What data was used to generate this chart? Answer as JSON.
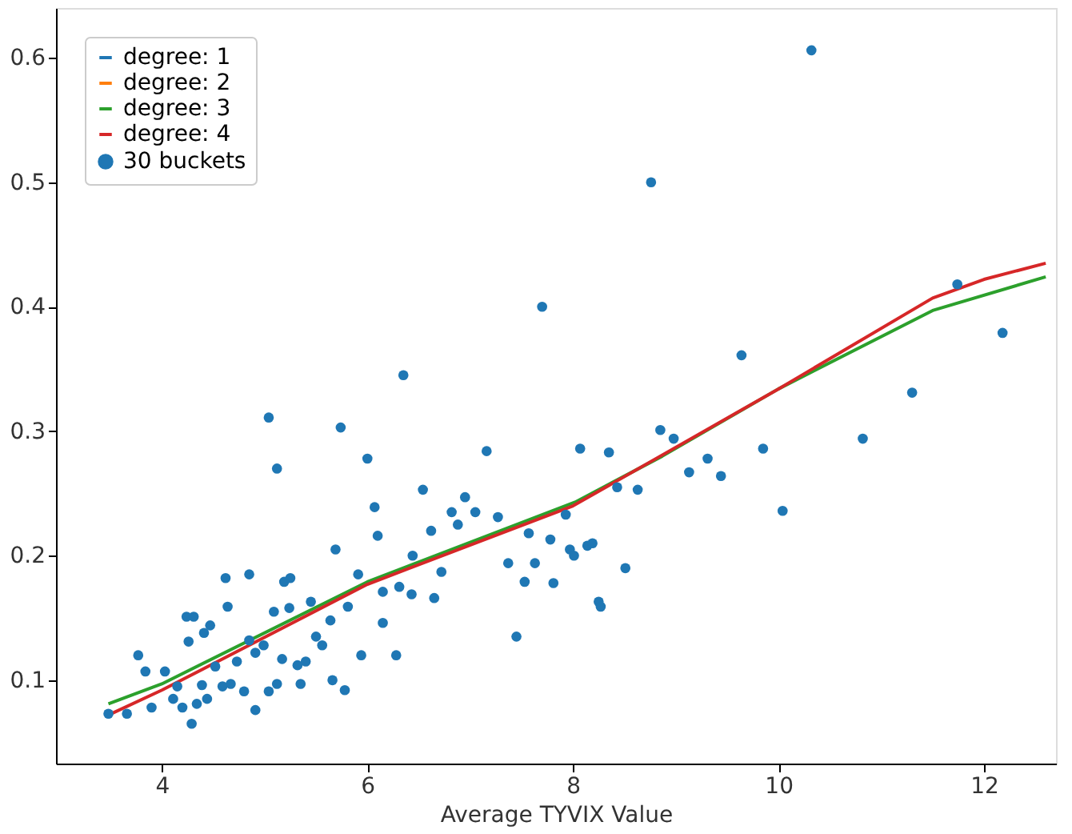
{
  "chart_data": {
    "type": "scatter",
    "xlabel": "Average TYVIX Value",
    "xlim": [
      2.97,
      12.7
    ],
    "xticks": [
      4,
      6,
      8,
      10,
      12
    ],
    "ylim": [
      0.033,
      0.64
    ],
    "yticks": [
      0.1,
      0.2,
      0.3,
      0.4,
      0.5,
      0.6
    ],
    "grid": false,
    "legend": "top left",
    "series": [
      {
        "name": "degree: 1",
        "type": "line",
        "color": "#1f77b4"
      },
      {
        "name": "degree: 2",
        "type": "line",
        "color": "#ff7f0e"
      },
      {
        "name": "degree: 3",
        "type": "line",
        "color": "#2ca02c",
        "x": [
          3.48,
          4,
          6,
          8.02,
          8.87,
          10,
          11.5,
          12.6
        ],
        "values": [
          0.081,
          0.097,
          0.179,
          0.243,
          0.28,
          0.334,
          0.397,
          0.424
        ]
      },
      {
        "name": "degree: 4",
        "type": "line",
        "color": "#d62728",
        "x": [
          3.48,
          4,
          6,
          8,
          10,
          11.5,
          12,
          12.6
        ],
        "values": [
          0.072,
          0.092,
          0.177,
          0.24,
          0.334,
          0.407,
          0.422,
          0.435
        ]
      },
      {
        "name": "30 buckets",
        "marker": "circle",
        "color": "#1f77b4",
        "x": [
          7.7,
          6.35,
          5.04,
          5.74,
          5.12,
          6.0,
          7.16,
          6.54,
          6.07,
          6.1,
          6.62,
          6.95,
          6.82,
          7.05,
          6.88,
          7.27,
          5.69,
          6.44,
          4.62,
          4.85,
          5.19,
          5.25,
          5.91,
          6.72,
          7.37,
          7.63,
          7.53,
          7.81,
          7.78,
          7.57,
          4.64,
          4.24,
          4.31,
          4.47,
          5.09,
          5.24,
          5.45,
          5.64,
          5.81,
          6.15,
          6.31,
          6.43,
          6.65,
          6.15,
          4.26,
          4.41,
          4.85,
          4.99,
          4.91,
          5.5,
          5.56,
          5.17,
          5.32,
          5.4,
          5.94,
          6.28,
          7.45,
          3.77,
          3.84,
          4.03,
          4.15,
          4.11,
          4.39,
          4.52,
          4.59,
          4.73,
          4.67,
          4.8,
          5.04,
          5.12,
          5.35,
          5.66,
          5.78,
          3.9,
          4.2,
          4.34,
          4.44,
          4.91,
          4.29,
          3.48,
          3.66,
          10.32,
          8.76,
          9.64,
          11.74,
          12.18,
          11.3,
          10.82,
          9.85,
          8.85,
          8.98,
          9.31,
          9.13,
          9.44,
          10.04,
          8.07,
          8.35,
          8.43,
          8.63,
          7.93,
          7.97,
          8.01,
          8.14,
          8.19,
          8.51,
          8.25,
          8.27
        ],
        "values": [
          0.4,
          0.345,
          0.311,
          0.303,
          0.27,
          0.278,
          0.284,
          0.253,
          0.239,
          0.216,
          0.22,
          0.247,
          0.235,
          0.235,
          0.225,
          0.231,
          0.205,
          0.2,
          0.182,
          0.185,
          0.179,
          0.182,
          0.185,
          0.187,
          0.194,
          0.194,
          0.179,
          0.178,
          0.213,
          0.218,
          0.159,
          0.151,
          0.151,
          0.144,
          0.155,
          0.158,
          0.163,
          0.148,
          0.159,
          0.171,
          0.175,
          0.169,
          0.166,
          0.146,
          0.131,
          0.138,
          0.132,
          0.128,
          0.122,
          0.135,
          0.128,
          0.117,
          0.112,
          0.115,
          0.12,
          0.12,
          0.135,
          0.12,
          0.107,
          0.107,
          0.095,
          0.085,
          0.096,
          0.111,
          0.095,
          0.115,
          0.097,
          0.091,
          0.091,
          0.097,
          0.097,
          0.1,
          0.092,
          0.078,
          0.078,
          0.081,
          0.085,
          0.076,
          0.065,
          0.073,
          0.073,
          0.606,
          0.5,
          0.361,
          0.418,
          0.379,
          0.331,
          0.294,
          0.286,
          0.301,
          0.294,
          0.278,
          0.267,
          0.264,
          0.236,
          0.286,
          0.283,
          0.255,
          0.253,
          0.233,
          0.205,
          0.2,
          0.208,
          0.21,
          0.19,
          0.163,
          0.159
        ]
      }
    ]
  }
}
